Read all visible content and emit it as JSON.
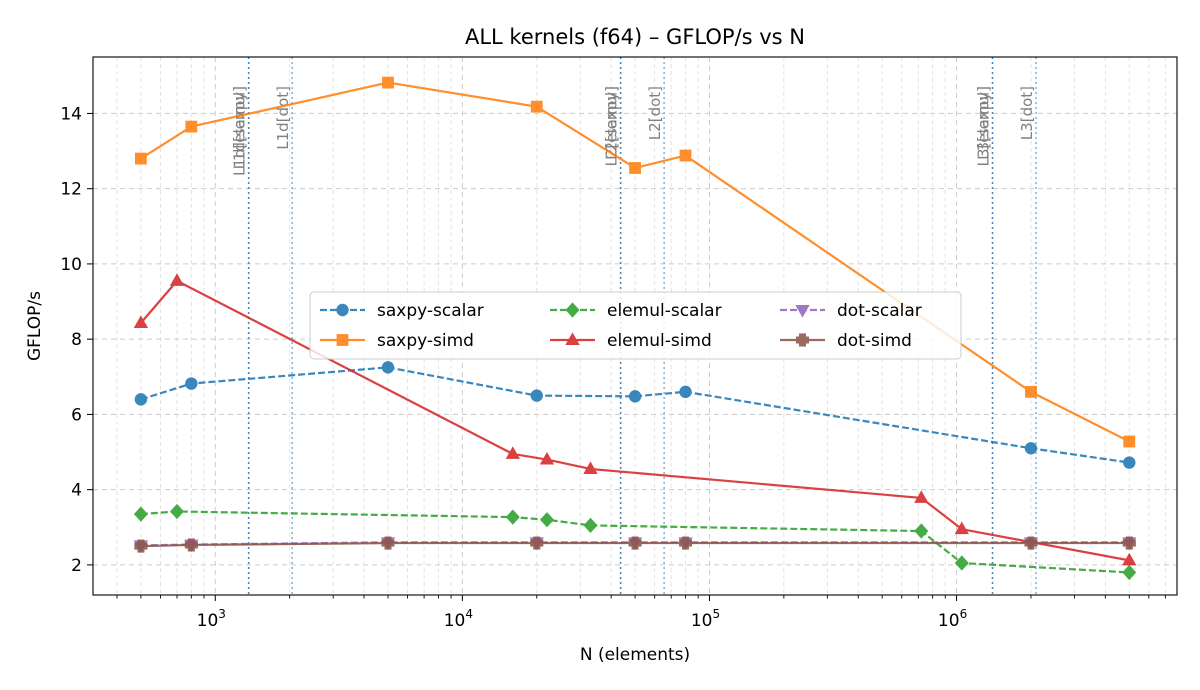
{
  "chart_data": {
    "type": "line",
    "title": "ALL kernels (f64) – GFLOP/s vs N",
    "xlabel": "N (elements)",
    "ylabel": "GFLOP/s",
    "x_scale": "log",
    "xlim": [
      320,
      7800000
    ],
    "ylim": [
      1.2,
      15.5
    ],
    "x_major_ticks": [
      {
        "value": 1000,
        "base": "10",
        "exp": "3"
      },
      {
        "value": 10000,
        "base": "10",
        "exp": "4"
      },
      {
        "value": 100000,
        "base": "10",
        "exp": "5"
      },
      {
        "value": 1000000,
        "base": "10",
        "exp": "6"
      }
    ],
    "y_ticks": [
      2,
      4,
      6,
      8,
      10,
      12,
      14
    ],
    "grid": true,
    "legend": {
      "placement": "center",
      "columns": 3
    },
    "series": [
      {
        "name": "saxpy-scalar",
        "color": "#1f77b4",
        "dash": "dashed",
        "marker": "circle",
        "x": [
          500,
          800,
          5000,
          20000,
          50000,
          80000,
          2000000,
          5000000
        ],
        "y": [
          6.4,
          6.82,
          7.25,
          6.5,
          6.48,
          6.6,
          5.1,
          4.72
        ]
      },
      {
        "name": "saxpy-simd",
        "color": "#ff7f0e",
        "dash": "solid",
        "marker": "square",
        "x": [
          500,
          800,
          5000,
          20000,
          50000,
          80000,
          2000000,
          5000000
        ],
        "y": [
          12.8,
          13.65,
          14.82,
          14.18,
          12.55,
          12.88,
          6.6,
          5.28
        ]
      },
      {
        "name": "elemul-scalar",
        "color": "#2ca02c",
        "dash": "dashed",
        "marker": "diamond",
        "x": [
          500,
          700,
          16000,
          22000,
          33000,
          720000,
          1050000,
          5000000
        ],
        "y": [
          3.35,
          3.42,
          3.27,
          3.2,
          3.05,
          2.9,
          2.05,
          1.8
        ]
      },
      {
        "name": "elemul-simd",
        "color": "#d62728",
        "dash": "solid",
        "marker": "triangle-up",
        "x": [
          500,
          700,
          16000,
          22000,
          33000,
          720000,
          1050000,
          5000000
        ],
        "y": [
          8.43,
          9.55,
          4.95,
          4.8,
          4.55,
          3.78,
          2.95,
          2.12
        ]
      },
      {
        "name": "dot-scalar",
        "color": "#9467bd",
        "dash": "dashed",
        "marker": "triangle-down",
        "x": [
          500,
          800,
          5000,
          20000,
          50000,
          80000,
          2000000,
          5000000
        ],
        "y": [
          2.52,
          2.54,
          2.6,
          2.6,
          2.6,
          2.6,
          2.6,
          2.6
        ]
      },
      {
        "name": "dot-simd",
        "color": "#8c564b",
        "dash": "solid",
        "marker": "plus",
        "x": [
          500,
          800,
          5000,
          20000,
          50000,
          80000,
          2000000,
          5000000
        ],
        "y": [
          2.5,
          2.53,
          2.58,
          2.58,
          2.58,
          2.58,
          2.58,
          2.58
        ]
      }
    ],
    "cache_markers": [
      {
        "x": 1365,
        "labels": [
          "L1d[saxpy]",
          "L1d[elemul]"
        ],
        "color": "#4f86b9"
      },
      {
        "x": 2048,
        "labels": [
          "L1d[dot]"
        ],
        "color": "#89b4d3"
      },
      {
        "x": 43690,
        "labels": [
          "L2[saxpy]",
          "L2[elemul]"
        ],
        "color": "#4f86b9"
      },
      {
        "x": 65536,
        "labels": [
          "L2[dot]"
        ],
        "color": "#89b4d3"
      },
      {
        "x": 1398100,
        "labels": [
          "L3[saxpy]",
          "L3[elemul]"
        ],
        "color": "#4f86b9"
      },
      {
        "x": 2097152,
        "labels": [
          "L3[dot]"
        ],
        "color": "#89b4d3"
      }
    ]
  }
}
